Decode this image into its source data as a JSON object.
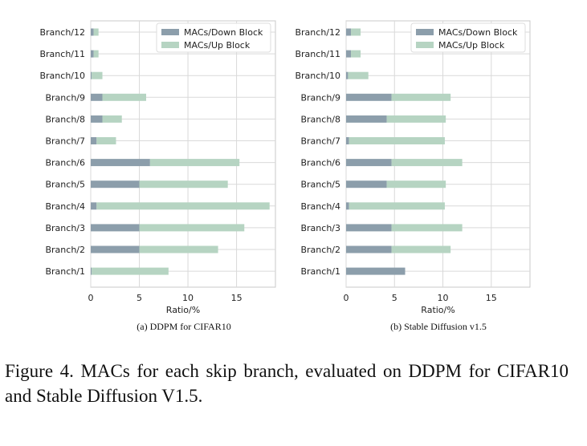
{
  "colors": {
    "down": "#8c9eab",
    "up": "#b6d4c2",
    "grid": "#d9d9d9",
    "frame": "#c8c8c8"
  },
  "chart_data": [
    {
      "type": "bar",
      "orientation": "horizontal",
      "stacked": true,
      "caption": "(a) DDPM for CIFAR10",
      "categories": [
        "Branch/1",
        "Branch/2",
        "Branch/3",
        "Branch/4",
        "Branch/5",
        "Branch/6",
        "Branch/7",
        "Branch/8",
        "Branch/9",
        "Branch/10",
        "Branch/11",
        "Branch/12"
      ],
      "series": [
        {
          "name": "MACs/Down Block",
          "values": [
            0.1,
            5.0,
            5.0,
            0.6,
            5.0,
            6.1,
            0.6,
            1.2,
            1.2,
            0.1,
            0.3,
            0.3
          ]
        },
        {
          "name": "MACs/Up Block",
          "values": [
            7.9,
            8.1,
            10.8,
            17.8,
            9.1,
            9.2,
            2.0,
            2.0,
            4.5,
            1.1,
            0.5,
            0.5
          ]
        }
      ],
      "xlabel": "Ratio/%",
      "ylabel": "",
      "xlim": [
        0,
        19
      ],
      "xticks": [
        0,
        5,
        10,
        15
      ],
      "grid": true,
      "legend": "top-right"
    },
    {
      "type": "bar",
      "orientation": "horizontal",
      "stacked": true,
      "caption": "(b) Stable Diffusion v1.5",
      "categories": [
        "Branch/1",
        "Branch/2",
        "Branch/3",
        "Branch/4",
        "Branch/5",
        "Branch/6",
        "Branch/7",
        "Branch/8",
        "Branch/9",
        "Branch/10",
        "Branch/11",
        "Branch/12"
      ],
      "series": [
        {
          "name": "MACs/Down Block",
          "values": [
            6.1,
            4.7,
            4.7,
            0.3,
            4.2,
            4.7,
            0.3,
            4.2,
            4.7,
            0.2,
            0.5,
            0.5
          ]
        },
        {
          "name": "MACs/Up Block",
          "values": [
            0.0,
            6.1,
            7.3,
            9.9,
            6.1,
            7.3,
            9.9,
            6.1,
            6.1,
            2.1,
            1.0,
            1.0
          ]
        }
      ],
      "xlabel": "Ratio/%",
      "ylabel": "",
      "xlim": [
        0,
        19
      ],
      "xticks": [
        0,
        5,
        10,
        15
      ],
      "grid": true,
      "legend": "top-right"
    }
  ],
  "caption": "Figure 4.  MACs for each skip branch, evaluated on DDPM for CIFAR10 and Stable Diffusion V1.5."
}
